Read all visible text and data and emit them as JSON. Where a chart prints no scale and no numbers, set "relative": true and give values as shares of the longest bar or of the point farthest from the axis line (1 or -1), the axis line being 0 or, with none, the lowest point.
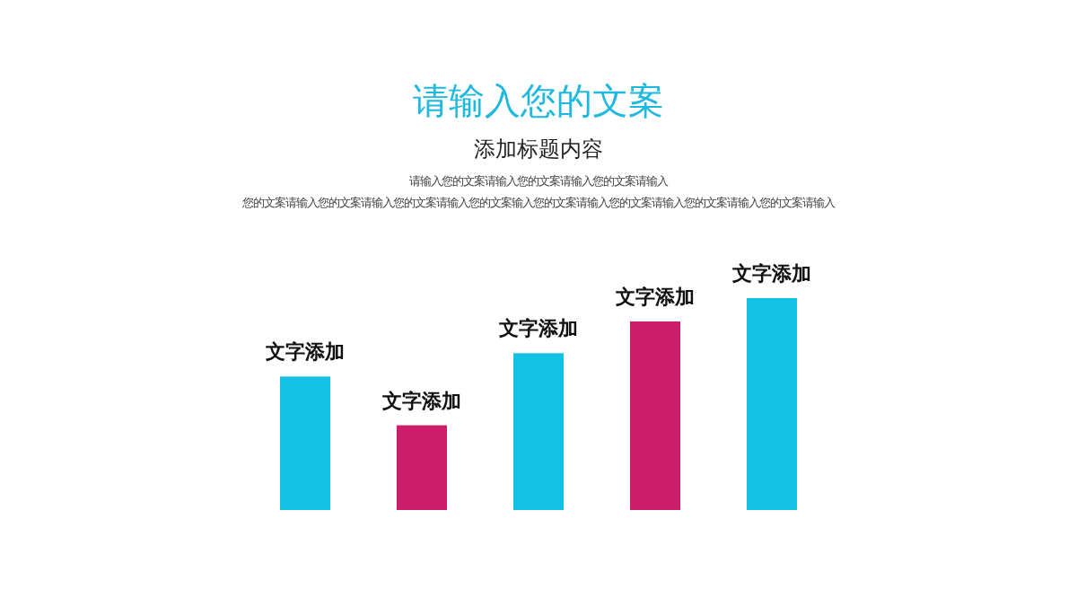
{
  "chart_data": {
    "type": "bar",
    "title": "请输入您的文案",
    "subtitle": "添加标题内容",
    "annotations": [
      "请输入您的文案请输入您的文案请输入您的文案请输入",
      "您的文案请输入您的文案请输入您的文案请输入您的文案输入您的文案请输入您的文案请输入您的文案请输入您的文案请输入"
    ],
    "categories": [
      "文字添加",
      "文字添加",
      "文字添加",
      "文字添加",
      "文字添加"
    ],
    "values": [
      0.63,
      0.4,
      0.74,
      0.89,
      1
    ],
    "colors": [
      "#12c1e3",
      "#cb1d69",
      "#12c1e3",
      "#cb1d69",
      "#12c1e3"
    ],
    "relative": true
  }
}
